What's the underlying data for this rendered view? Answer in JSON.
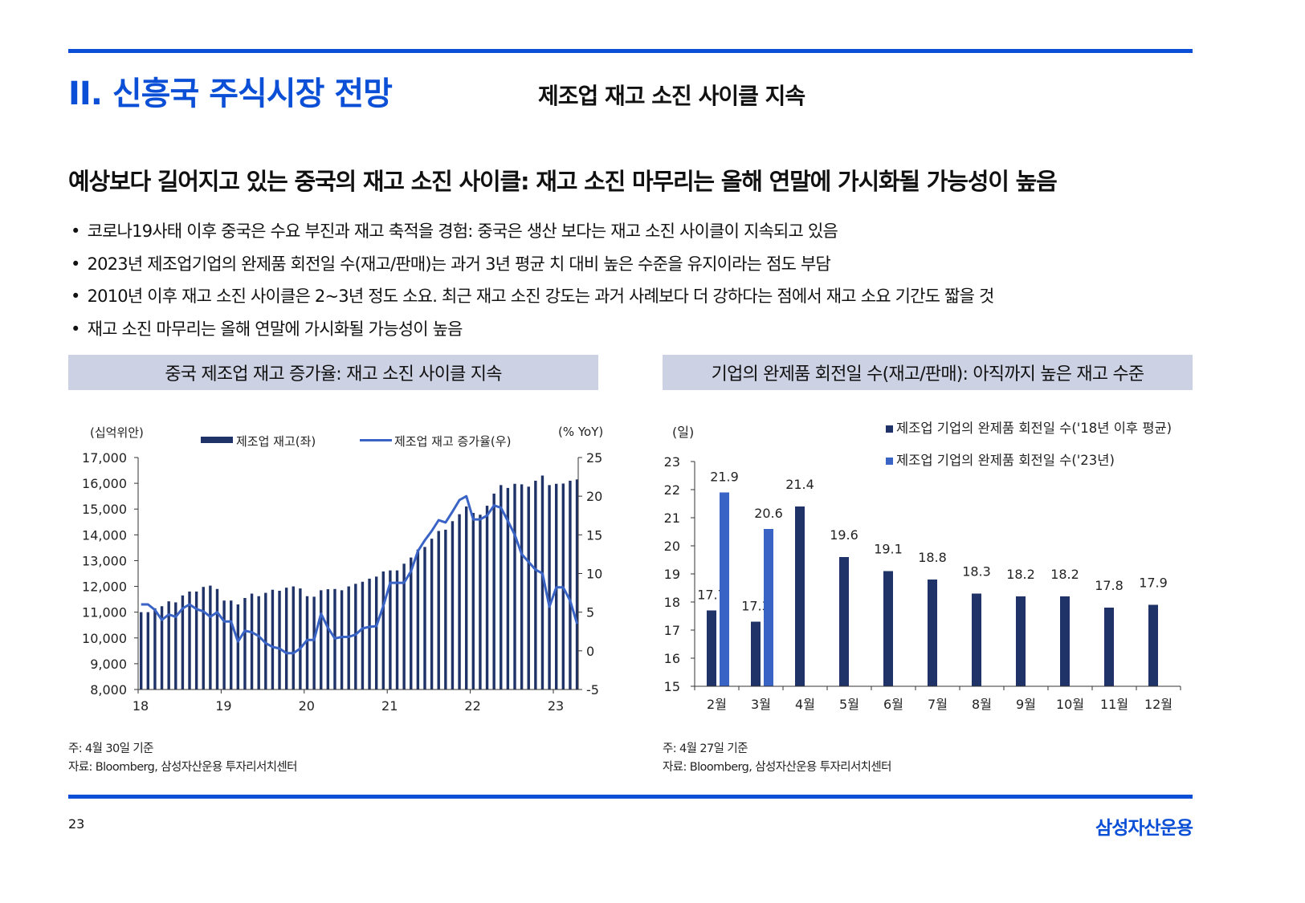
{
  "header": {
    "section_title": "II. 신흥국 주식시장 전망",
    "subtitle": "제조업 재고 소진 사이클 지속"
  },
  "headline": "예상보다 길어지고 있는 중국의 재고 소진 사이클: 재고 소진 마무리는 올해 연말에 가시화될 가능성이 높음",
  "bullets": [
    "코로나19사태 이후 중국은 수요 부진과 재고 축적을 경험: 중국은 생산 보다는 재고 소진 사이클이 지속되고 있음",
    "2023년 제조업기업의 완제품 회전일 수(재고/판매)는 과거 3년 평균 치 대비 높은 수준을 유지이라는 점도 부담",
    "2010년 이후 재고 소진 사이클은 2~3년 정도 소요. 최근 재고 소진 강도는 과거 사례보다 더 강하다는 점에서 재고 소요 기간도 짧을 것",
    "재고 소진 마무리는 올해 연말에 가시화될 가능성이 높음"
  ],
  "left_panel": {
    "title": "중국 제조업 재고 증가율: 재고 소진 사이클 지속",
    "note": "주: 4월 30일 기준",
    "source": "자료: Bloomberg, 삼성자산운용 투자리서치센터"
  },
  "right_panel": {
    "title": "기업의 완제품 회전일 수(재고/판매): 아직까지 높은 재고 수준",
    "note": "주: 4월 27일 기준",
    "source": "자료: Bloomberg, 삼성자산운용 투자리서치센터"
  },
  "chart_data": [
    {
      "type": "bar+line",
      "left_unit": "(십억위안)",
      "right_unit": "(% YoY)",
      "x_start": "2018-01",
      "x_ticks": [
        "18",
        "19",
        "20",
        "21",
        "22",
        "23"
      ],
      "y_left": {
        "range": [
          8000,
          17000
        ],
        "ticks": [
          "8,000",
          "9,000",
          "10,000",
          "11,000",
          "12,000",
          "13,000",
          "14,000",
          "15,000",
          "16,000",
          "17,000"
        ]
      },
      "y_right": {
        "range": [
          -5,
          25
        ],
        "ticks": [
          "-5",
          "0",
          "5",
          "10",
          "15",
          "20",
          "25"
        ]
      },
      "series": [
        {
          "name": "제조업 재고(좌)",
          "type": "bar",
          "axis": "left",
          "color": "#1f3368",
          "values": [
            11000,
            11000,
            11150,
            11230,
            11420,
            11380,
            11650,
            11800,
            11800,
            11980,
            12030,
            11900,
            11450,
            11450,
            11300,
            11550,
            11720,
            11620,
            11750,
            11870,
            11830,
            11950,
            12000,
            11920,
            11620,
            11600,
            11850,
            11890,
            11900,
            11850,
            12000,
            12100,
            12180,
            12300,
            12380,
            12580,
            12620,
            12620,
            12880,
            13120,
            13430,
            13530,
            13850,
            14150,
            14200,
            14530,
            14800,
            15100,
            14850,
            14780,
            15130,
            15600,
            15930,
            15820,
            15980,
            15960,
            15870,
            16100,
            16300,
            15930,
            15980,
            15990,
            16100,
            16150
          ]
        },
        {
          "name": "제조업 재고 증가율(우)",
          "type": "line",
          "axis": "right",
          "color": "#3a63c6",
          "values": [
            6,
            6,
            5.3,
            4,
            4.7,
            4.4,
            5.5,
            6,
            5.4,
            5.1,
            4.4,
            5,
            3.8,
            3.8,
            1.2,
            2.6,
            2.4,
            1.9,
            1,
            0.5,
            0.3,
            -0.3,
            -0.3,
            0.3,
            1.4,
            1.4,
            4.8,
            3,
            1.6,
            1.8,
            1.8,
            2.1,
            2.9,
            3.1,
            3.2,
            5.8,
            8.8,
            8.8,
            8.8,
            10.3,
            12.9,
            14.3,
            15.5,
            16.9,
            16.6,
            18,
            19.5,
            20,
            17,
            17,
            17.5,
            18.8,
            18.5,
            16.8,
            15,
            12.5,
            11.5,
            10.5,
            10,
            5.7,
            8.2,
            8.2,
            6.5,
            3.5
          ]
        }
      ]
    },
    {
      "type": "bar",
      "unit": "(일)",
      "categories": [
        "2월",
        "3월",
        "4월",
        "5월",
        "6월",
        "7월",
        "8월",
        "9월",
        "10월",
        "11월",
        "12월"
      ],
      "y": {
        "range": [
          15,
          23
        ],
        "ticks": [
          "15",
          "16",
          "17",
          "18",
          "19",
          "20",
          "21",
          "22",
          "23"
        ]
      },
      "series": [
        {
          "name": "제조업 기업의 완제품 회전일 수('18년 이후 평균)",
          "color": "#1f3368",
          "values": [
            17.7,
            17.3,
            21.4,
            19.6,
            19.1,
            18.8,
            18.3,
            18.2,
            18.2,
            17.8,
            17.9
          ],
          "labels": [
            "17.7",
            "17.3",
            "21.4",
            "19.6",
            "19.1",
            "18.8",
            "18.3",
            "18.2",
            "18.2",
            "17.8",
            "17.9"
          ]
        },
        {
          "name": "제조업 기업의 완제품 회전일 수('23년)",
          "color": "#3a63c6",
          "values": [
            21.9,
            20.6,
            null,
            null,
            null,
            null,
            null,
            null,
            null,
            null,
            null
          ],
          "labels": [
            "21.9",
            "20.6"
          ]
        }
      ]
    }
  ],
  "footer": {
    "page_number": "23",
    "logo_text": "삼성자산운용"
  }
}
